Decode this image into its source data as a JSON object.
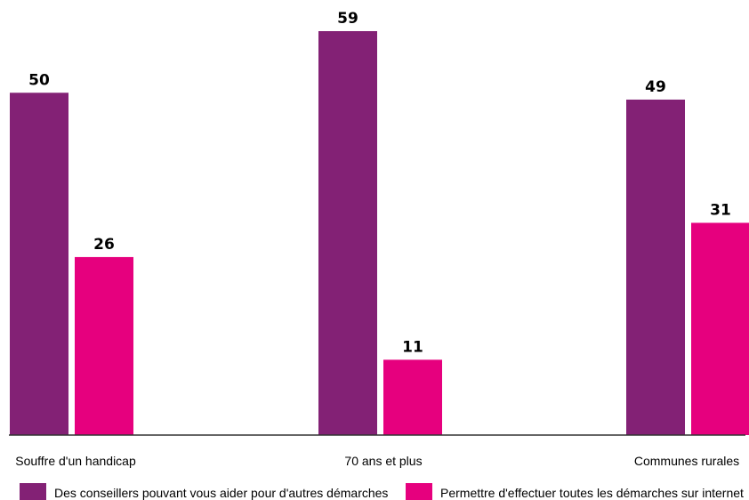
{
  "chart_data": {
    "type": "bar",
    "categories": [
      "Souffre d'un handicap",
      "70 ans et plus",
      "Communes rurales"
    ],
    "series": [
      {
        "name": "Des conseillers pouvant vous aider pour d'autres démarches",
        "values": [
          50,
          59,
          49
        ],
        "color": "#832175"
      },
      {
        "name": "Permettre d'effectuer toutes les démarches sur internet",
        "values": [
          26,
          11,
          31
        ],
        "color": "#e6007e"
      }
    ],
    "ylim": [
      0,
      59
    ],
    "data_labels": [
      "50",
      "26",
      "59",
      "11",
      "49",
      "31"
    ],
    "grid": false,
    "legend_position": "bottom",
    "title": "",
    "xlabel": "",
    "ylabel": ""
  }
}
